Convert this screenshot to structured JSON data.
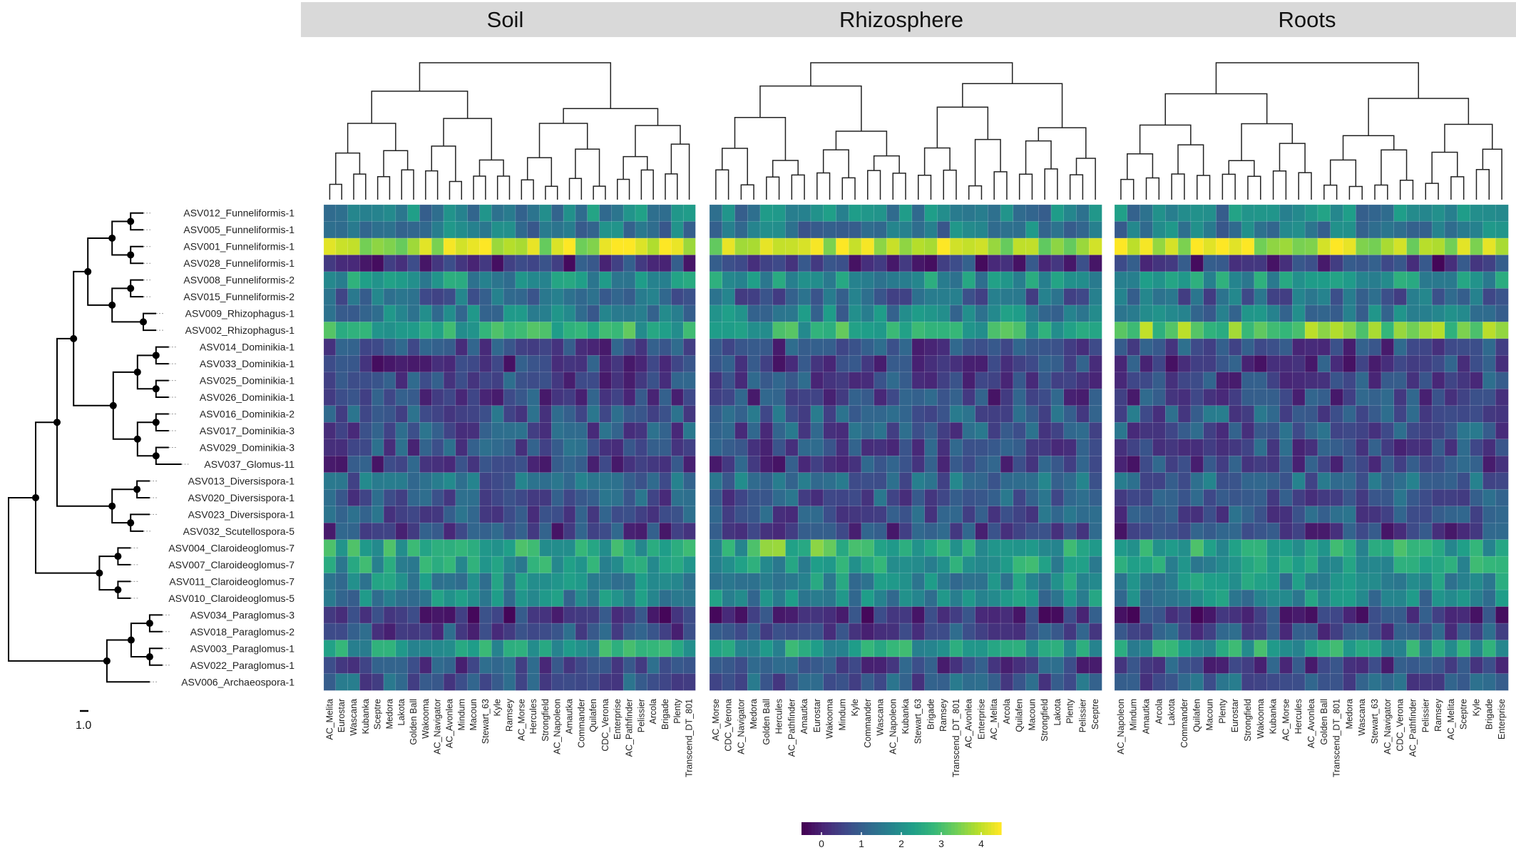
{
  "chart_data": {
    "type": "heatmap",
    "title": "",
    "colorscale": {
      "name": "viridis",
      "range": [
        -0.5,
        4.5
      ],
      "ticks": [
        0,
        1,
        2,
        3,
        4
      ],
      "tick_labels": [
        "0",
        "1",
        "2",
        "3",
        "4"
      ]
    },
    "tree": {
      "scale_bar_label": "1.0"
    },
    "rows": [
      "ASV012_Funneliformis-1",
      "ASV005_Funneliformis-1",
      "ASV001_Funneliformis-1",
      "ASV028_Funneliformis-1",
      "ASV008_Funneliformis-2",
      "ASV015_Funneliformis-2",
      "ASV009_Rhizophagus-1",
      "ASV002_Rhizophagus-1",
      "ASV014_Dominikia-1",
      "ASV033_Dominikia-1",
      "ASV025_Dominikia-1",
      "ASV026_Dominikia-1",
      "ASV016_Dominikia-2",
      "ASV017_Dominikia-3",
      "ASV029_Dominikia-3",
      "ASV037_Glomus-11",
      "ASV013_Diversispora-1",
      "ASV020_Diversispora-1",
      "ASV023_Diversispora-1",
      "ASV032_Scutellospora-5",
      "ASV004_Claroideoglomus-7",
      "ASV007_Claroideoglomus-7",
      "ASV011_Claroideoglomus-7",
      "ASV010_Claroideoglomus-5",
      "ASV034_Paraglomus-3",
      "ASV018_Paraglomus-2",
      "ASV003_Paraglomus-1",
      "ASV022_Paraglomus-1",
      "ASV006_Archaeospora-1"
    ],
    "row_baseline": [
      1.7,
      1.5,
      4.0,
      0.3,
      2.0,
      1.1,
      1.6,
      2.6,
      0.6,
      0.4,
      0.6,
      0.5,
      0.9,
      0.8,
      0.7,
      0.5,
      1.2,
      0.8,
      0.8,
      0.5,
      2.4,
      2.2,
      1.9,
      1.7,
      0.3,
      0.6,
      2.3,
      0.6,
      0.9
    ],
    "panels": [
      {
        "name": "Soil",
        "columns": [
          "AC_Melita",
          "Eurostar",
          "Wascana",
          "Kubanka",
          "Sceptre",
          "Medora",
          "Lakota",
          "Golden Ball",
          "Wakooma",
          "AC_Navigator",
          "AC_Avonlea",
          "Mindum",
          "Macoun",
          "Stewart_63",
          "Kyle",
          "Ramsey",
          "AC_Morse",
          "Hercules",
          "Strongfield",
          "AC_Napoleon",
          "Amautka",
          "Commander",
          "Quilafen",
          "CDC_Verona",
          "Enterprise",
          "AC_Pathfinder",
          "Pelissier",
          "Arcola",
          "Brigade",
          "Plenty",
          "Transcend_DT_801"
        ]
      },
      {
        "name": "Rhizosphere",
        "columns": [
          "AC_Morse",
          "CDC_Verona",
          "AC_Navigator",
          "Medora",
          "Golden Ball",
          "Hercules",
          "AC_Pathfinder",
          "Amautka",
          "Eurostar",
          "Wakooma",
          "Mindum",
          "Kyle",
          "Commander",
          "Wascana",
          "AC_Napoleon",
          "Kubanka",
          "Stewart_63",
          "Brigade",
          "Ramsey",
          "Transcend_DT_801",
          "AC_Avonlea",
          "Enterprise",
          "AC_Melita",
          "Arcola",
          "Quilafen",
          "Macoun",
          "Strongfield",
          "Lakota",
          "Plenty",
          "Pelissier",
          "Sceptre"
        ]
      },
      {
        "name": "Roots",
        "columns": [
          "AC_Napoleon",
          "Mindum",
          "Amautka",
          "Arcola",
          "Lakota",
          "Commander",
          "Quilafen",
          "Macoun",
          "Plenty",
          "Eurostar",
          "Strongfield",
          "Wakooma",
          "Kubanka",
          "AC_Morse",
          "Hercules",
          "AC_Avonlea",
          "Golden Ball",
          "Transcend_DT_801",
          "Medora",
          "Wascana",
          "Stewart_63",
          "AC_Navigator",
          "CDC_Verona",
          "AC_Pathfinder",
          "Pelissier",
          "Ramsey",
          "AC_Melita",
          "Sceptre",
          "Kyle",
          "Brigade",
          "Enterprise"
        ]
      }
    ]
  }
}
